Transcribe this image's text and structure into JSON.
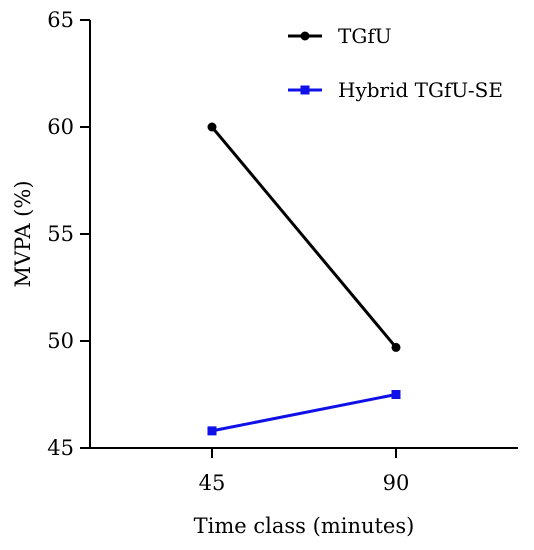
{
  "chart_data": {
    "type": "line",
    "xlabel": "Time class (minutes)",
    "ylabel": "MVPA (%)",
    "x_categories": [
      "45",
      "90"
    ],
    "ylim": [
      45,
      65
    ],
    "yticks": [
      45,
      50,
      55,
      60,
      65
    ],
    "grid": false,
    "legend_position": "top-right",
    "series": [
      {
        "name": "TGfU",
        "values": [
          60.0,
          49.7
        ],
        "color": "#000000",
        "marker": "circle"
      },
      {
        "name": "Hybrid TGfU-SE",
        "values": [
          45.8,
          47.5
        ],
        "color": "#1010e8",
        "marker": "square"
      }
    ]
  }
}
